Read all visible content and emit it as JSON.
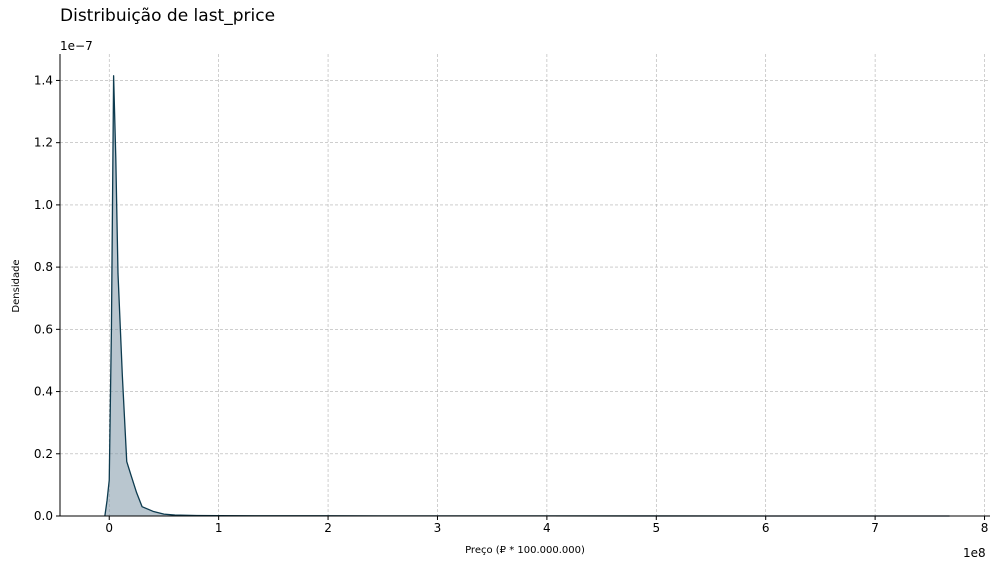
{
  "chart_data": {
    "type": "area",
    "title": "Distribuição de last_price",
    "xlabel": "Preço (₽ * 100.000.000)",
    "ylabel": "Densidade",
    "x_offset_label": "1e8",
    "y_offset_label": "1e−7",
    "xlim": [
      -0.45,
      8.05
    ],
    "ylim": [
      0,
      1.485
    ],
    "x_ticks": [
      0,
      1,
      2,
      3,
      4,
      5,
      6,
      7,
      8
    ],
    "x_tick_labels": [
      "0",
      "1",
      "2",
      "3",
      "4",
      "5",
      "6",
      "7",
      "8"
    ],
    "y_ticks": [
      0,
      0.2,
      0.4,
      0.6,
      0.8,
      1.0,
      1.2,
      1.4
    ],
    "y_tick_labels": [
      "0.0",
      "0.2",
      "0.4",
      "0.6",
      "0.8",
      "1.0",
      "1.2",
      "1.4"
    ],
    "grid": true,
    "series": [
      {
        "color": "#0d3b4f",
        "fill": "#7f98a7",
        "x": [
          -0.04,
          -0.02,
          0.0,
          0.02,
          0.04,
          0.06,
          0.08,
          0.12,
          0.16,
          0.2,
          0.25,
          0.3,
          0.4,
          0.5,
          0.6,
          0.8,
          1.0,
          1.5,
          2.0,
          3.0,
          4.0,
          5.0,
          6.0,
          7.0,
          7.68
        ],
        "y": [
          0.0,
          0.05,
          0.115,
          0.6,
          1.415,
          1.15,
          0.78,
          0.45,
          0.175,
          0.13,
          0.075,
          0.03,
          0.015,
          0.006,
          0.003,
          0.0015,
          0.001,
          0.0008,
          0.0006,
          0.0004,
          0.0003,
          0.0002,
          0.0001,
          5e-05,
          0.0
        ]
      }
    ]
  }
}
